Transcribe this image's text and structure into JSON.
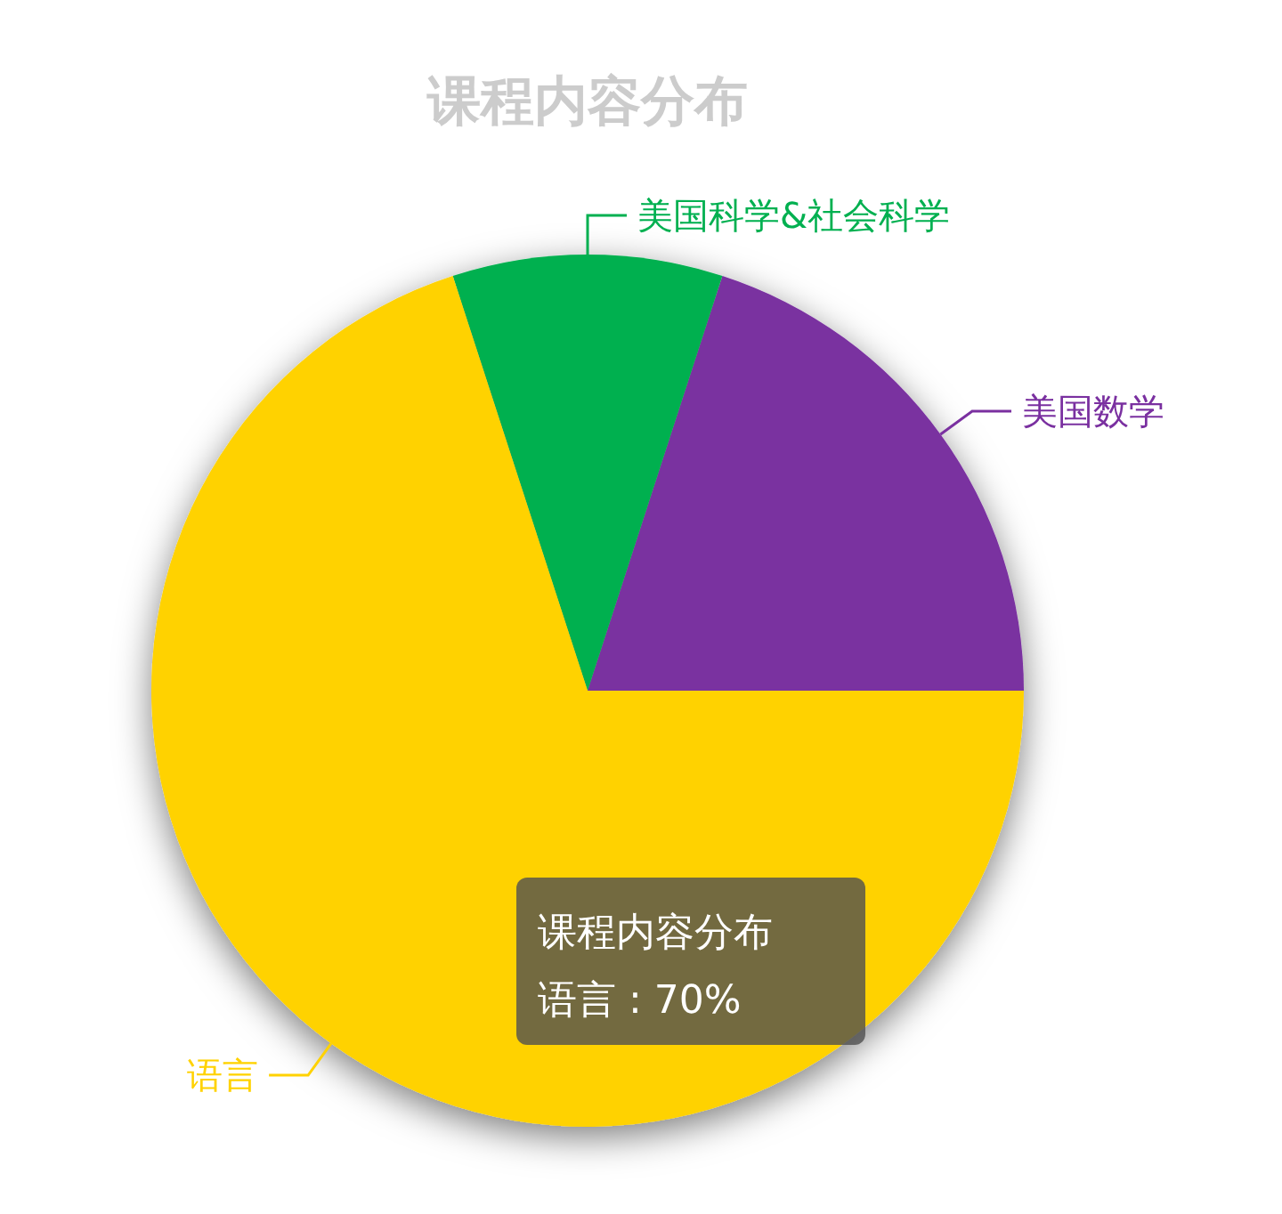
{
  "chart_data": {
    "type": "pie",
    "title": "课程内容分布",
    "categories": [
      "美国数学",
      "美国科学&社会科学",
      "语言"
    ],
    "values": [
      20,
      10,
      70
    ],
    "colors": [
      "#7a30a0",
      "#00b050",
      "#ffd200"
    ],
    "annotations": [
      "课程内容分布",
      "语言 : 70%"
    ]
  }
}
